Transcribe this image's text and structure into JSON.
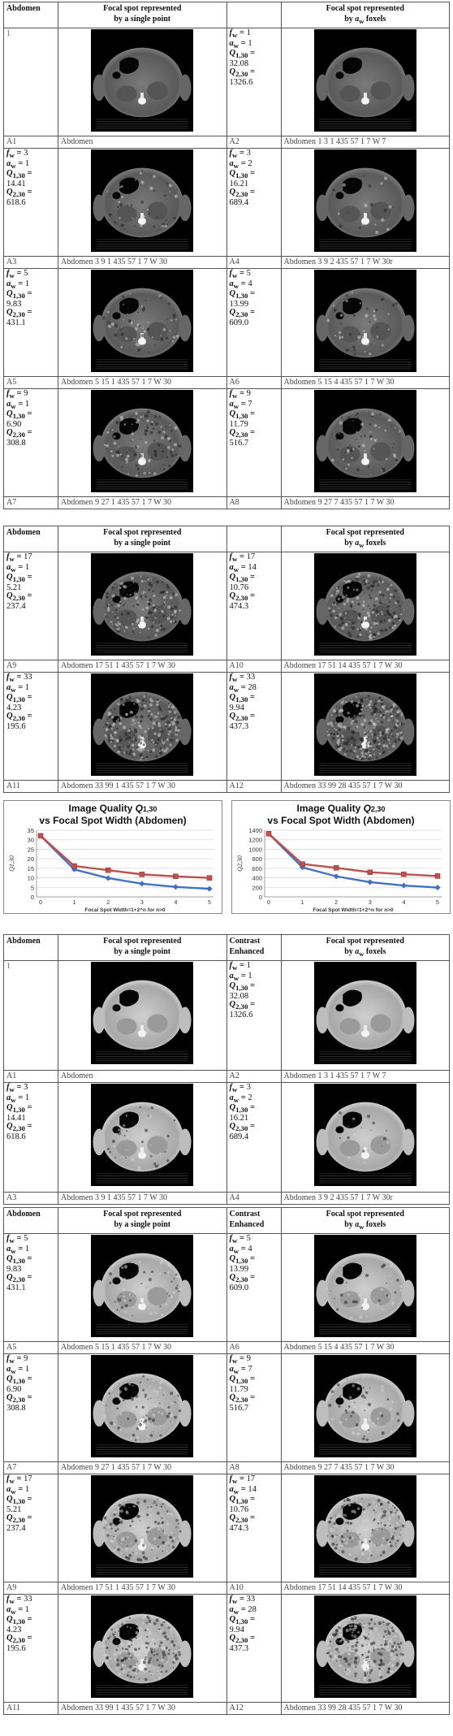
{
  "headers": {
    "first": [
      "Abdomen",
      "Focal spot represented\nby a single point",
      "",
      "Focal spot represented\nby a_w foxels"
    ],
    "third": [
      "Abdomen",
      "Focal spot represented\nby a single point",
      "Contrast\nEnhanced",
      "Focal spot represented\nby a_w foxels"
    ]
  },
  "sections": {
    "s1": [
      {
        "c1": {
          "label": "1",
          "params": null
        },
        "c3": {
          "label": "",
          "params": {
            "f": "1",
            "a": "1",
            "q1": "32.08",
            "q2": "1326.6"
          }
        },
        "labels": [
          "A1",
          "Abdomen",
          "A2",
          "Abdomen 1 3 1 435 57 1 7 W 7"
        ]
      },
      {
        "c1": {
          "params": {
            "f": "3",
            "a": "1",
            "q1": "14.41",
            "q2": "618.6"
          }
        },
        "c3": {
          "params": {
            "f": "3",
            "a": "2",
            "q1": "16.21",
            "q2": "689.4"
          }
        },
        "labels": [
          "A3",
          "Abdomen 3 9 1 435 57 1 7 W 30",
          "A4",
          "Abdomen 3 9 2 435 57 1 7 W 30r"
        ]
      },
      {
        "c1": {
          "params": {
            "f": "5",
            "a": "1",
            "q1": "9.83",
            "q2": "431.1"
          }
        },
        "c3": {
          "params": {
            "f": "5",
            "a": "4",
            "q1": "13.99",
            "q2": "609.0"
          }
        },
        "labels": [
          "A5",
          "Abdomen 5 15 1 435 57 1 7 W 30",
          "A6",
          "Abdomen 5 15 4 435 57 1 7 W 30"
        ]
      },
      {
        "c1": {
          "params": {
            "f": "9",
            "a": "1",
            "q1": "6.90",
            "q2": "308.8"
          }
        },
        "c3": {
          "params": {
            "f": "9",
            "a": "7",
            "q1": "11.79",
            "q2": "516.7"
          }
        },
        "labels": [
          "A7",
          "Abdomen 9 27 1 435 57 1 7 W 30",
          "A8",
          "Abdomen 9 27 7 435 57 1 7 W 30"
        ]
      }
    ],
    "s2": [
      {
        "c1": {
          "params": {
            "f": "17",
            "a": "1",
            "q1": "5.21",
            "q2": "237.4"
          }
        },
        "c3": {
          "params": {
            "f": "17",
            "a": "14",
            "q1": "10.76",
            "q2": "474.3"
          }
        },
        "labels": [
          "A9",
          "Abdomen 17 51 1 435 57 1 7 W 30",
          "A10",
          "Abdomen 17 51 14 435 57 1 7 W 30"
        ]
      },
      {
        "c1": {
          "params": {
            "f": "33",
            "a": "1",
            "q1": "4.23",
            "q2": "195.6"
          }
        },
        "c3": {
          "params": {
            "f": "33",
            "a": "28",
            "q1": "9.94",
            "q2": "437.3"
          }
        },
        "labels": [
          "A11",
          "Abdomen 33 99 1 435 57 1 7 W 30",
          "A12",
          "Abdomen 33 99 28 435 57 1 7 W 30"
        ]
      }
    ],
    "s3": [
      {
        "c1": {
          "label": "1",
          "params": null
        },
        "c3": {
          "params": {
            "f": "1",
            "a": "1",
            "q1": "32.08",
            "q2": "1326.6"
          }
        },
        "labels": [
          "A1",
          "Abdomen",
          "A2",
          "Abdomen 1 3 1 435 57 1 7 W 7"
        ]
      },
      {
        "c1": {
          "params": {
            "f": "3",
            "a": "1",
            "q1": "14.41",
            "q2": "618.6"
          }
        },
        "c3": {
          "params": {
            "f": "3",
            "a": "2",
            "q1": "16.21",
            "q2": "689.4"
          }
        },
        "labels": [
          "A3",
          "Abdomen 3 9 1 435 57 1 7 W 30",
          "A4",
          "Abdomen 3 9 2 435 57 1 7 W 30r"
        ]
      }
    ],
    "s4": [
      {
        "c1": {
          "params": {
            "f": "5",
            "a": "1",
            "q1": "9.83",
            "q2": "431.1"
          }
        },
        "c3": {
          "params": {
            "f": "5",
            "a": "4",
            "q1": "13.99",
            "q2": "609.0"
          }
        },
        "labels": [
          "A5",
          "Abdomen 5 15 1 435 57 1 7 W 30",
          "A6",
          "Abdomen 5 15 4 435 57 1 7 W 30"
        ]
      },
      {
        "c1": {
          "params": {
            "f": "9",
            "a": "1",
            "q1": "6.90",
            "q2": "308.8"
          }
        },
        "c3": {
          "params": {
            "f": "9",
            "a": "7",
            "q1": "11.79",
            "q2": "516.7"
          }
        },
        "labels": [
          "A7",
          "Abdomen 9 27 1 435 57 1 7 W 30",
          "A8",
          "Abdomen 9 27 7 435 57 1 7 W 30"
        ]
      },
      {
        "c1": {
          "params": {
            "f": "17",
            "a": "1",
            "q1": "5.21",
            "q2": "237.4"
          }
        },
        "c3": {
          "params": {
            "f": "17",
            "a": "14",
            "q1": "10.76",
            "q2": "474.3"
          }
        },
        "labels": [
          "A9",
          "Abdomen 17 51 1 435 57 1 7 W 30",
          "A10",
          "Abdomen 17 51 14 435 57 1 7 W 30"
        ]
      },
      {
        "c1": {
          "params": {
            "f": "33",
            "a": "1",
            "q1": "4.23",
            "q2": "195.6"
          }
        },
        "c3": {
          "params": {
            "f": "33",
            "a": "28",
            "q1": "9.94",
            "q2": "437.3"
          }
        },
        "labels": [
          "A11",
          "Abdomen 33 99 1 435 57 1 7 W 30",
          "A12",
          "Abdomen 33 99 28 435 57 1 7 W 30"
        ]
      }
    ]
  },
  "chart_data": [
    {
      "type": "line",
      "title": "Image Quality Q1,30 vs Focal Spot Width (Abdomen)",
      "xlabel": "Focal Spot Width=1+2^n for n>0",
      "ylabel": "Q1,30",
      "x": [
        0,
        1,
        2,
        3,
        4,
        5
      ],
      "ylim": [
        0,
        35
      ],
      "yticks": [
        0,
        5,
        10,
        15,
        20,
        25,
        30,
        35
      ],
      "series": [
        {
          "color": "#4472c4",
          "values": [
            32.08,
            14.41,
            9.83,
            6.9,
            5.21,
            4.23
          ]
        },
        {
          "color": "#c0504d",
          "values": [
            32.08,
            16.21,
            13.99,
            11.79,
            10.76,
            9.94
          ]
        }
      ]
    },
    {
      "type": "line",
      "title": "Image Quality Q2,30 vs Focal Spot Width (Abdomen)",
      "xlabel": "Focal Spot Width=1+2^n for n>0",
      "ylabel": "Q2,30",
      "x": [
        0,
        1,
        2,
        3,
        4,
        5
      ],
      "ylim": [
        0,
        1400
      ],
      "yticks": [
        0,
        200,
        400,
        600,
        800,
        1000,
        1200,
        1400
      ],
      "series": [
        {
          "color": "#4472c4",
          "values": [
            1326.6,
            618.6,
            431.1,
            308.8,
            237.4,
            195.6
          ]
        },
        {
          "color": "#c0504d",
          "values": [
            1326.6,
            689.4,
            609.0,
            516.7,
            474.3,
            437.3
          ]
        }
      ]
    }
  ],
  "colors": {
    "blue": "#4472c4",
    "red": "#c0504d"
  }
}
